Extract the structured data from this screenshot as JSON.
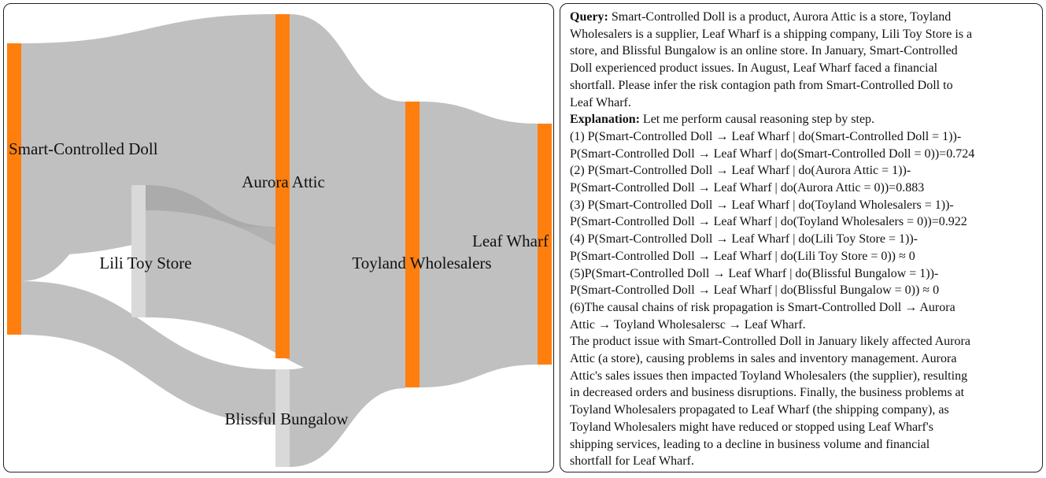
{
  "diagram": {
    "nodes": [
      {
        "id": "doll",
        "label": "Smart-Controlled Doll",
        "color": "#ff7f0e"
      },
      {
        "id": "lili",
        "label": "Lili Toy Store",
        "color": "#d9d9d9"
      },
      {
        "id": "aurora",
        "label": "Aurora Attic",
        "color": "#ff7f0e"
      },
      {
        "id": "blissful",
        "label": "Blissful Bungalow",
        "color": "#d9d9d9"
      },
      {
        "id": "toyland",
        "label": "Toyland Wholesalers",
        "color": "#ff7f0e"
      },
      {
        "id": "leaf",
        "label": "Leaf Wharf",
        "color": "#ff7f0e"
      }
    ],
    "links": [
      {
        "source": "doll",
        "target": "aurora",
        "color": "#c0c0c0"
      },
      {
        "source": "doll",
        "target": "lili",
        "color": "#c0c0c0"
      },
      {
        "source": "doll",
        "target": "blissful",
        "color": "#c0c0c0"
      },
      {
        "source": "lili",
        "target": "aurora",
        "color": "#a9a9a9"
      },
      {
        "source": "lili",
        "target": "toyland",
        "color": "#c0c0c0"
      },
      {
        "source": "aurora",
        "target": "toyland",
        "color": "#c0c0c0"
      },
      {
        "source": "blissful",
        "target": "toyland",
        "color": "#c0c0c0"
      },
      {
        "source": "toyland",
        "target": "leaf",
        "color": "#c0c0c0"
      }
    ]
  },
  "text_panel": {
    "query_label": "Query:",
    "query_lines": [
      " Smart-Controlled Doll is a product, Aurora Attic is a store, Toyland",
      "Wholesalers is a supplier, Leaf Wharf is a shipping company, Lili Toy Store is a",
      "store, and Blissful Bungalow is an online store. In January, Smart-Controlled",
      "Doll experienced product issues. In August, Leaf Wharf faced a financial",
      "shortfall. Please infer the risk contagion path from Smart-Controlled Doll to",
      "Leaf Wharf."
    ],
    "explanation_label": "Explanation:",
    "explanation_lines": [
      " Let me perform causal reasoning step by step.",
      "(1) P(Smart-Controlled Doll → Leaf Wharf | do(Smart-Controlled Doll = 1))-",
      "P(Smart-Controlled Doll → Leaf Wharf | do(Smart-Controlled Doll = 0))=0.724",
      "(2) P(Smart-Controlled Doll → Leaf Wharf | do(Aurora Attic = 1))-",
      "P(Smart-Controlled Doll → Leaf Wharf | do(Aurora Attic = 0))=0.883",
      "(3) P(Smart-Controlled Doll → Leaf Wharf | do(Toyland Wholesalers = 1))-",
      "P(Smart-Controlled Doll → Leaf Wharf | do(Toyland Wholesalers = 0))=0.922",
      "(4) P(Smart-Controlled Doll → Leaf Wharf | do(Lili Toy Store = 1))-",
      "P(Smart-Controlled Doll → Leaf Wharf | do(Lili Toy Store = 0)) ≈ 0",
      "(5)P(Smart-Controlled Doll → Leaf Wharf | do(Blissful Bungalow = 1))-",
      "P(Smart-Controlled Doll → Leaf Wharf | do(Blissful Bungalow = 0)) ≈ 0",
      "(6)The causal chains of risk propagation is Smart-Controlled Doll → Aurora",
      "Attic → Toyland Wholesalersc → Leaf Wharf.",
      "The product issue with Smart-Controlled Doll in January likely affected Aurora",
      "Attic (a store), causing problems in sales and inventory management. Aurora",
      "Attic's sales issues then impacted Toyland Wholesalers (the supplier), resulting",
      "in decreased orders and business disruptions. Finally, the business problems at",
      "Toyland Wholesalers propagated to Leaf Wharf (the shipping company), as",
      "Toyland Wholesalers might have reduced or stopped using Leaf Wharf's",
      "shipping services, leading to a decline in business volume and financial",
      "shortfall for Leaf Wharf."
    ]
  }
}
